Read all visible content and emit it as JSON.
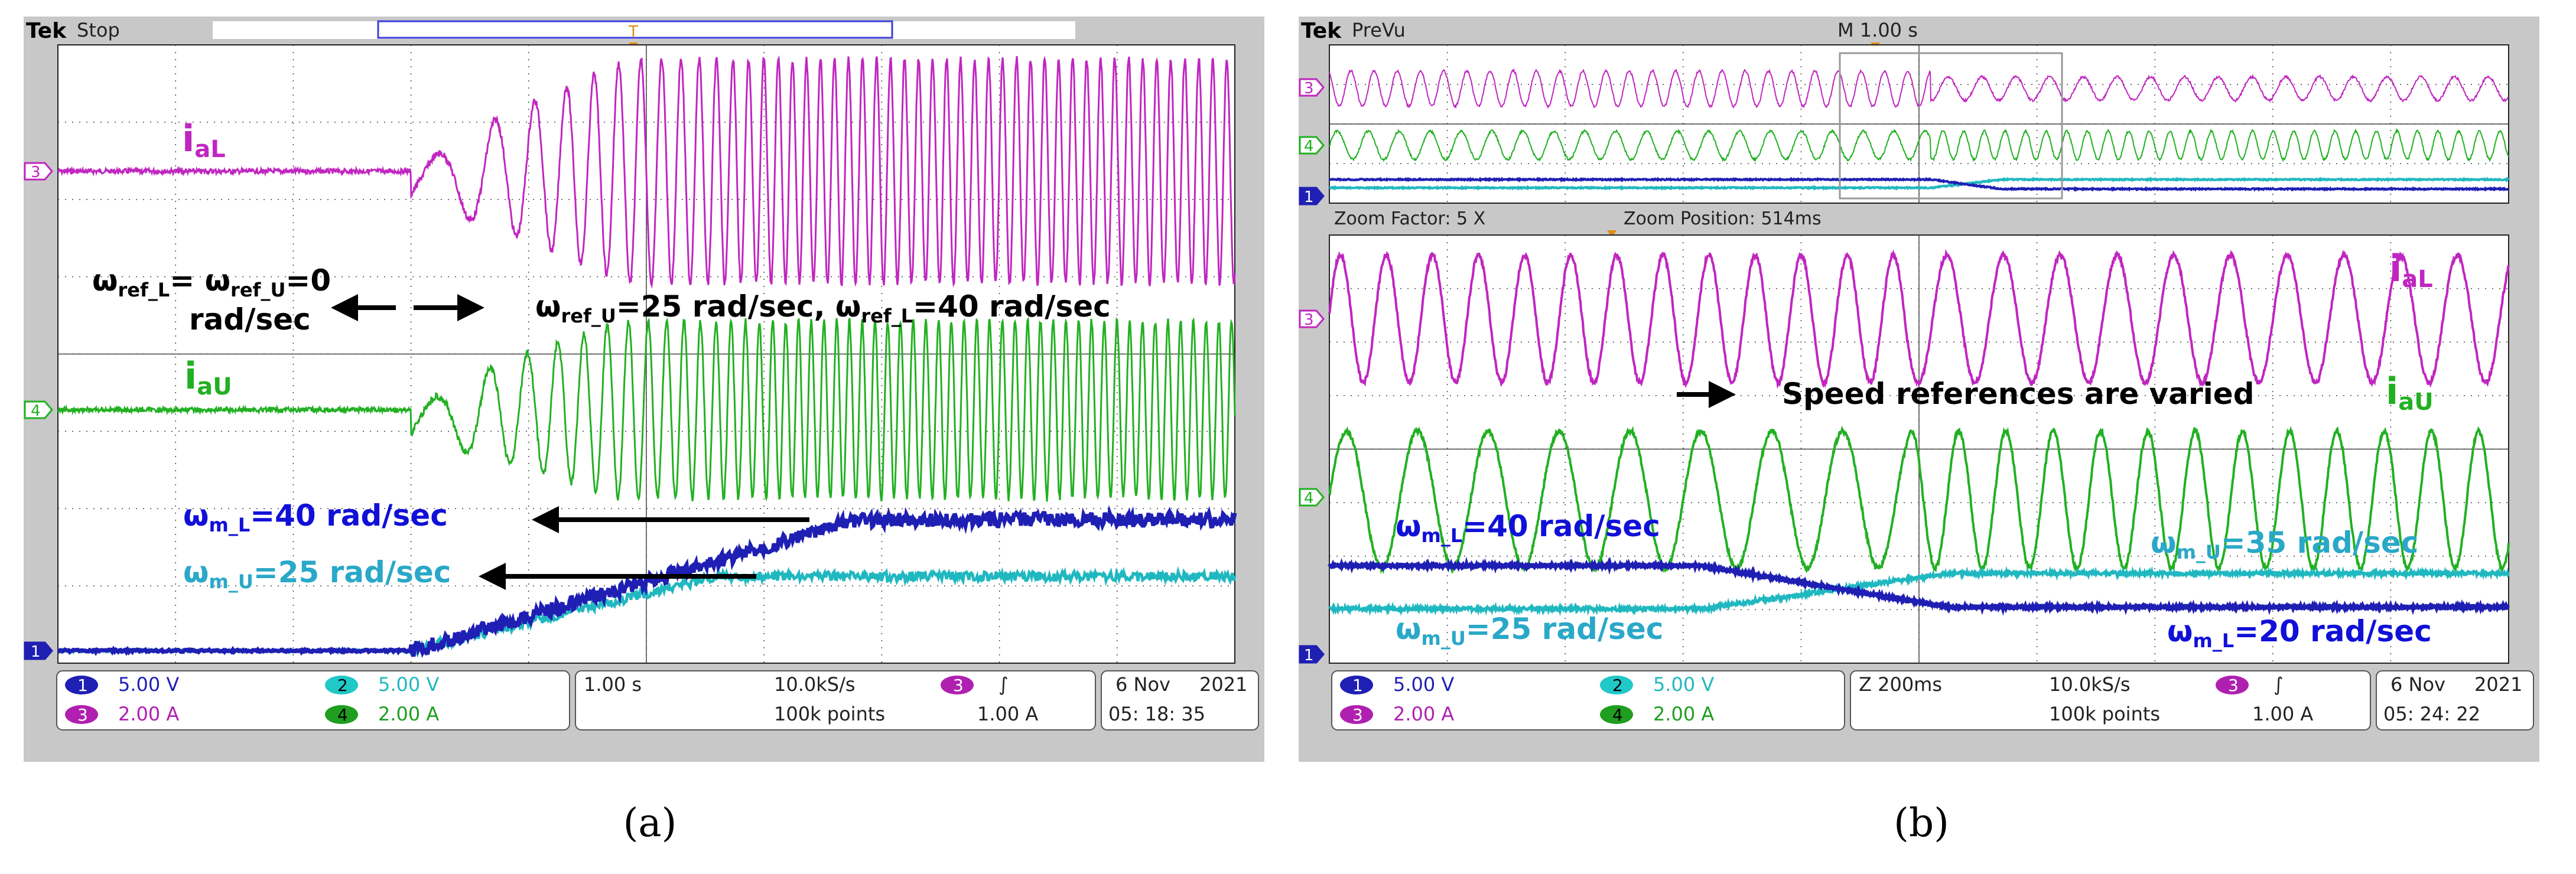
{
  "colors": {
    "ch1": "#1f1fb4",
    "ch2": "#20b8c0",
    "ch3": "#c026c0",
    "ch4": "#22b022",
    "ann_blue": "#1010d8",
    "ann_cyan": "#2aa8c8"
  },
  "captions": {
    "a": "(a)",
    "b": "(b)"
  },
  "panel_a": {
    "brand": "Tek",
    "status": "Stop",
    "trigger_marker": "T",
    "channel_markers": [
      "3",
      "4",
      "1"
    ],
    "label_ial": "i",
    "label_ial_sub": "aL",
    "label_iau": "i",
    "label_iau_sub": "aU",
    "ref0_l1": "ω",
    "ref0_l1_a": "ref_L",
    "ref0_l1_b": "= ω",
    "ref0_l1_c": "ref_U",
    "ref0_l1_d": "=0",
    "ref0_l2": "rad/sec",
    "ref1_a": "ω",
    "ref1_b": "ref_U",
    "ref1_c": "=25 rad/sec, ω",
    "ref1_d": "ref_L",
    "ref1_e": "=40 rad/sec",
    "wml_a": "ω",
    "wml_b": "m_L",
    "wml_c": "=40 rad/sec",
    "wmu_a": "ω",
    "wmu_b": "m_U",
    "wmu_c": "=25 rad/sec",
    "status_bar": {
      "ch1_num": "1",
      "ch1_scale": "5.00 V",
      "ch2_num": "2",
      "ch2_scale": "5.00 V",
      "ch3_num": "3",
      "ch3_scale": "2.00 A",
      "ch4_num": "4",
      "ch4_scale": "2.00 A",
      "timebase": "1.00 s",
      "sample_rate": "10.0kS/s",
      "record": "100k points",
      "trig_num": "3",
      "trig_slope": "∫",
      "trig_level": "1.00 A",
      "date": "6 Nov",
      "year": "2021",
      "time": "05: 18: 35"
    }
  },
  "panel_b": {
    "brand": "Tek",
    "status": "PreVu",
    "main_timebase": "M 1.00 s",
    "overview_markers": [
      "3",
      "4",
      "1"
    ],
    "zoom_factor": "Zoom Factor: 5 X",
    "zoom_position": "Zoom Position: 514ms",
    "zoom_markers": [
      "3",
      "4",
      "1"
    ],
    "label_ial": "i",
    "label_ial_sub": "aL",
    "label_iau": "i",
    "label_iau_sub": "aU",
    "annotation": "Speed references are varied",
    "wml40_a": "ω",
    "wml40_b": "m_L",
    "wml40_c": "=40 rad/sec",
    "wmu35_a": "ω",
    "wmu35_b": "m_U",
    "wmu35_c": "=35 rad/sec",
    "wmu25_a": "ω",
    "wmu25_b": "m_U",
    "wmu25_c": "=25 rad/sec",
    "wml20_a": "ω",
    "wml20_b": "m_L",
    "wml20_c": "=20 rad/sec",
    "status_bar": {
      "ch1_num": "1",
      "ch1_scale": "5.00 V",
      "ch2_num": "2",
      "ch2_scale": "5.00 V",
      "ch3_num": "3",
      "ch3_scale": "2.00 A",
      "ch4_num": "4",
      "ch4_scale": "2.00 A",
      "timebase": "Z 200ms",
      "sample_rate": "10.0kS/s",
      "record": "100k points",
      "trig_num": "3",
      "trig_slope": "∫",
      "trig_level": "1.00 A",
      "date": "6 Nov",
      "year": "2021",
      "time": "05: 24: 22"
    }
  },
  "chart_data": [
    {
      "type": "line",
      "title": "",
      "x_unit": "s",
      "x_div": 1.0,
      "x_range": [
        0,
        10
      ],
      "series": [
        {
          "name": "",
          "channel": 3,
          "unit": "A",
          "scale_per_div": 2.0,
          "x": [
            0,
            3.0,
            3.0,
            5.0,
            10
          ],
          "amplitude_A": [
            0,
            0,
            0.8,
            3.0,
            3.5
          ],
          "frequency_hz_start": 1.0,
          "frequency_hz_end": 9.0
        },
        {
          "name": "",
          "channel": 4,
          "unit": "A",
          "scale_per_div": 2.0,
          "x": [
            0,
            3.0,
            3.0,
            5.0,
            10
          ],
          "amplitude_A": [
            0,
            0,
            0.8,
            3.0,
            3.0
          ]
        },
        {
          "name": "",
          "channel": 1,
          "unit": "rad/sec",
          "x": [
            0,
            3.0,
            6.8,
            10
          ],
          "values": [
            0,
            0,
            40,
            40
          ]
        },
        {
          "name": "",
          "channel": 2,
          "unit": "rad/sec",
          "x": [
            0,
            3.0,
            5.7,
            10
          ],
          "values": [
            0,
            0,
            25,
            25
          ]
        }
      ]
    },
    {
      "type": "line",
      "title": "",
      "x_unit": "ms",
      "zoom_factor": 5,
      "zoom_position_ms": 514,
      "x_div": 200,
      "series": [
        {
          "name": "",
          "channel": 3,
          "unit": "A",
          "note": "sinusoid, freq decreases when references change"
        },
        {
          "name": "",
          "channel": 4,
          "unit": "A",
          "note": "sinusoid, freq increases when references change"
        },
        {
          "name": "",
          "channel": 1,
          "unit": "rad/sec",
          "values_before": 40,
          "values_after": 20
        },
        {
          "name": "",
          "channel": 2,
          "unit": "rad/sec",
          "values_before": 25,
          "values_after": 35
        }
      ]
    }
  ]
}
